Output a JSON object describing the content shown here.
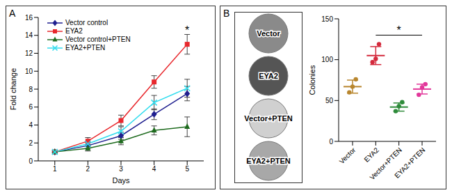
{
  "chart_data": [
    {
      "type": "line",
      "label": "A",
      "x": [
        1,
        2,
        3,
        4,
        5
      ],
      "xlim": [
        0.5,
        5.5
      ],
      "xticks": [
        1,
        2,
        3,
        4,
        5
      ],
      "ylim": [
        0,
        16
      ],
      "yticks": [
        0,
        2,
        4,
        6,
        8,
        10,
        12,
        14,
        16
      ],
      "x_label": "Days",
      "y_label": "Fold change",
      "legend": "top-left",
      "series": [
        {
          "name": "Vector control",
          "color": "#1f1f8f",
          "marker": "diamond",
          "values": [
            1,
            1.7,
            2.8,
            5.2,
            7.5
          ],
          "errors": [
            0.1,
            0.3,
            0.4,
            0.6,
            0.8
          ]
        },
        {
          "name": "EYA2",
          "color": "#e8282d",
          "marker": "square",
          "values": [
            1,
            2.2,
            4.5,
            8.8,
            13
          ],
          "errors": [
            0.1,
            0.4,
            0.6,
            0.7,
            1.1
          ]
        },
        {
          "name": "Vector control+PTEN",
          "color": "#1e6b1e",
          "marker": "triangle",
          "values": [
            1,
            1.4,
            2.2,
            3.4,
            3.8
          ],
          "errors": [
            0.1,
            0.3,
            0.4,
            0.5,
            1.1
          ]
        },
        {
          "name": "EYA2+PTEN",
          "color": "#33ddee",
          "marker": "x",
          "values": [
            1,
            1.9,
            3.3,
            6.5,
            8.1
          ],
          "errors": [
            0.1,
            0.3,
            0.5,
            0.8,
            1.0
          ]
        }
      ],
      "annotations": [
        {
          "text": "*",
          "x": 5,
          "y": 14.6
        }
      ]
    },
    {
      "type": "image",
      "label": "B",
      "image_labels": [
        "Vector",
        "EYA2",
        "Vector+PTEN",
        "EYA2+PTEN"
      ]
    },
    {
      "type": "scatter",
      "categories": [
        "Vector",
        "EYA2",
        "Vector+PTEN",
        "EYA2+PTEN"
      ],
      "y_label": "Colonies",
      "ylim": [
        0,
        150
      ],
      "yticks": [
        0,
        50,
        100,
        150
      ],
      "colors": [
        "#b8862e",
        "#d42a3c",
        "#2e8b3a",
        "#e2379a"
      ],
      "points": [
        [
          60,
          67,
          76
        ],
        [
          97,
          101,
          119
        ],
        [
          37,
          43,
          48
        ],
        [
          57,
          66,
          70
        ]
      ],
      "means": [
        67,
        105,
        42,
        64
      ],
      "errors": [
        8,
        11,
        5,
        6
      ],
      "significance": [
        {
          "from": "EYA2",
          "to": "EYA2+PTEN",
          "y": 130,
          "text": "*"
        }
      ]
    }
  ]
}
